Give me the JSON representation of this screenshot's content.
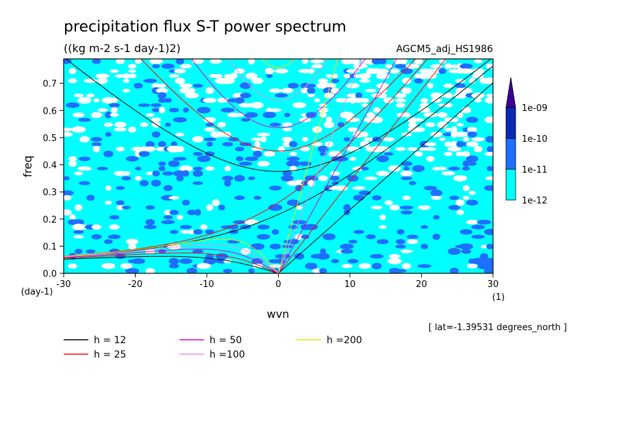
{
  "chart_data": {
    "type": "heatmap",
    "title": "precipitation flux S-T power spectrum",
    "subtitle": "((kg m-2 s-1 day-1)2)",
    "run_label": "AGCM5_adj_HS1986",
    "xlabel": "wvn",
    "ylabel": "freq",
    "x_unit": "(1)",
    "y_unit": "(day-1)",
    "annotation": "[ lat=-1.39531 degrees_north ]",
    "xlim": [
      -30,
      30
    ],
    "ylim": [
      0,
      0.79
    ],
    "xticks": [
      -30,
      -20,
      -10,
      0,
      10,
      20,
      30
    ],
    "xtick_labels": [
      "-30",
      "-20",
      "-10",
      "0",
      "10",
      "20",
      "30"
    ],
    "yticks": [
      0,
      0.1,
      0.2,
      0.3,
      0.4,
      0.5,
      0.6,
      0.7
    ],
    "ytick_labels": [
      "0.0",
      "0.1",
      "0.2",
      "0.3",
      "0.4",
      "0.5",
      "0.6",
      "0.7"
    ],
    "colorbar": {
      "levels": [
        "1e-12",
        "1e-11",
        "1e-10",
        "1e-09"
      ],
      "colors": [
        "#00ffff",
        "#1e6eff",
        "#0a28b4",
        "#3c0096"
      ],
      "below_color": "#ffffff"
    },
    "series": [
      {
        "name": "h = 12",
        "h": 12,
        "color": "#000000"
      },
      {
        "name": "h = 25",
        "h": 25,
        "color": "#ff0000"
      },
      {
        "name": "h = 50",
        "h": 50,
        "color": "#e000c8"
      },
      {
        "name": "h =100",
        "h": 100,
        "color": "#e890e8"
      },
      {
        "name": "h =200",
        "h": 200,
        "color": "#f0e000"
      }
    ],
    "grid": false
  }
}
